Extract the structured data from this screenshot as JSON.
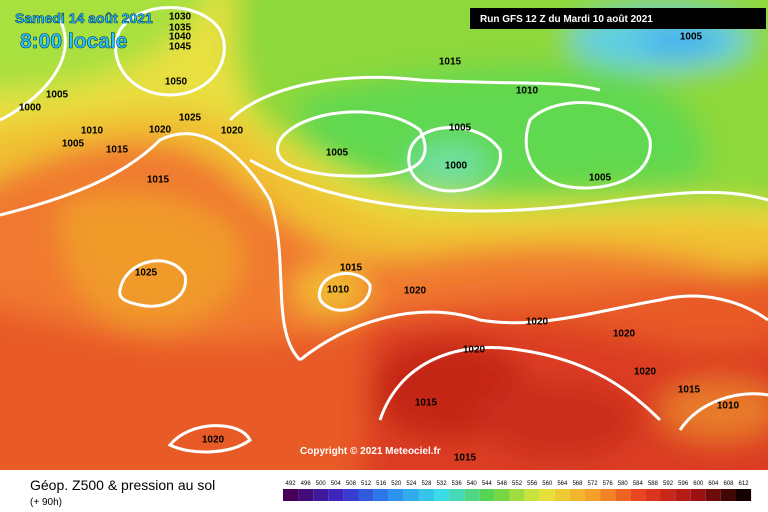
{
  "header": {
    "date": "Samedi 14 août 2021",
    "time": "8:00 locale"
  },
  "run": "Run GFS 12 Z du Mardi 10 août 2021",
  "isobars": [
    1030,
    1035,
    1040,
    1045,
    1050,
    1005,
    1000,
    1010,
    1005,
    1015,
    1020,
    1025,
    1020,
    1015,
    1015,
    1010,
    1005,
    1005,
    1005,
    1000,
    1005,
    1025,
    1015,
    1010,
    1020,
    1020,
    1020,
    1020,
    1020,
    1015,
    1010,
    1015,
    1015,
    1020
  ],
  "copyright": "Copyright © 2021 Meteociel.fr",
  "legend": {
    "title": "Géop. Z500 & pression au sol",
    "lead_time": "(+ 90h)",
    "scale": [
      492,
      496,
      500,
      504,
      508,
      512,
      516,
      520,
      524,
      528,
      532,
      536,
      540,
      544,
      548,
      552,
      556,
      560,
      564,
      568,
      572,
      576,
      580,
      584,
      588,
      592,
      596,
      600,
      604,
      608,
      612
    ]
  }
}
